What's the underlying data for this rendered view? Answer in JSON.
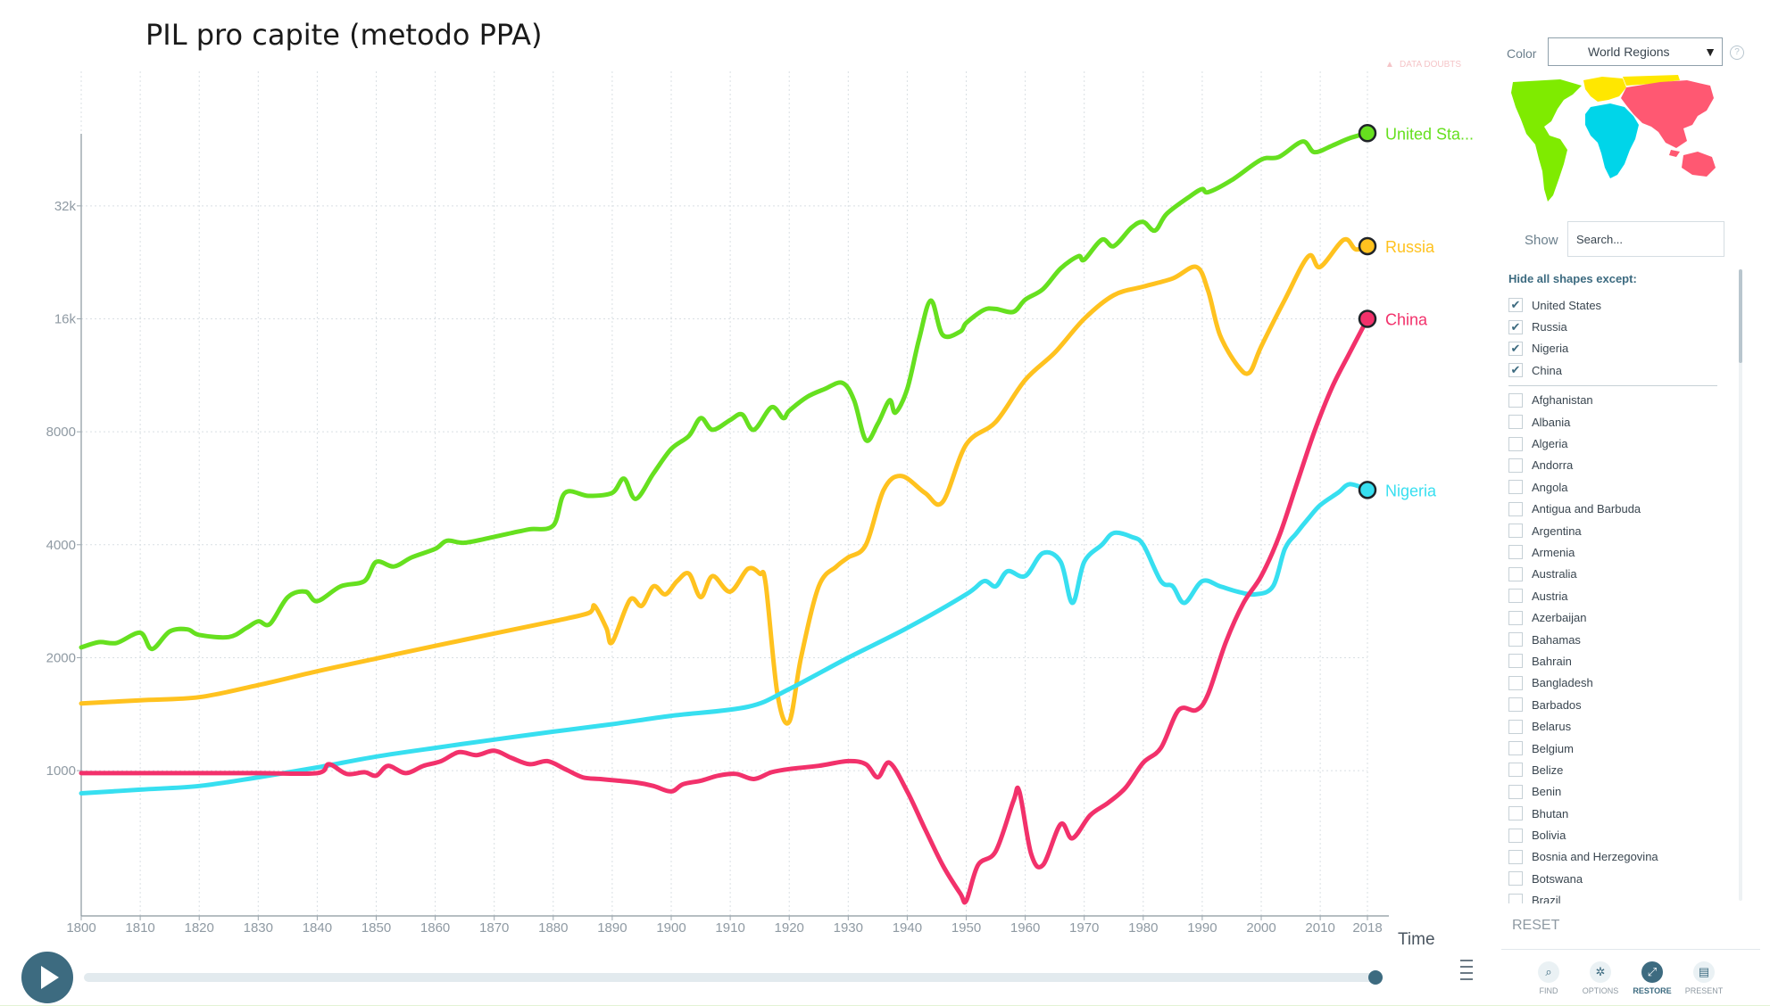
{
  "page_title": "PIL pro capite (metodo PPA)",
  "chart_data": {
    "type": "line",
    "title": "PIL pro capite (metodo PPA)",
    "xlabel": "Time",
    "ylabel": "",
    "x_range": [
      1800,
      2018
    ],
    "y_scale": "log",
    "y_range": [
      410,
      62000
    ],
    "x_ticks": [
      "1800",
      "1810",
      "1820",
      "1830",
      "1840",
      "1850",
      "1860",
      "1870",
      "1880",
      "1890",
      "1900",
      "1910",
      "1920",
      "1930",
      "1940",
      "1950",
      "1960",
      "1970",
      "1980",
      "1990",
      "2000",
      "2010",
      "2018"
    ],
    "y_ticks": [
      {
        "value": 1000,
        "label": "1000"
      },
      {
        "value": 2000,
        "label": "2000"
      },
      {
        "value": 4000,
        "label": "4000"
      },
      {
        "value": 8000,
        "label": "8000"
      },
      {
        "value": 16000,
        "label": "16k"
      },
      {
        "value": 32000,
        "label": "32k"
      }
    ],
    "grid": true,
    "notice": "DATA DOUBTS",
    "series": [
      {
        "name": "United States",
        "label": "United Sta...",
        "color": "#66e01f",
        "points": [
          [
            1800,
            2130
          ],
          [
            1803,
            2200
          ],
          [
            1806,
            2190
          ],
          [
            1810,
            2330
          ],
          [
            1812,
            2110
          ],
          [
            1815,
            2350
          ],
          [
            1818,
            2380
          ],
          [
            1820,
            2300
          ],
          [
            1825,
            2270
          ],
          [
            1828,
            2400
          ],
          [
            1830,
            2500
          ],
          [
            1832,
            2460
          ],
          [
            1835,
            2900
          ],
          [
            1838,
            3000
          ],
          [
            1840,
            2830
          ],
          [
            1844,
            3100
          ],
          [
            1848,
            3200
          ],
          [
            1850,
            3600
          ],
          [
            1853,
            3500
          ],
          [
            1856,
            3700
          ],
          [
            1860,
            3900
          ],
          [
            1862,
            4100
          ],
          [
            1865,
            4050
          ],
          [
            1870,
            4200
          ],
          [
            1873,
            4300
          ],
          [
            1876,
            4400
          ],
          [
            1880,
            4500
          ],
          [
            1882,
            5500
          ],
          [
            1886,
            5400
          ],
          [
            1890,
            5500
          ],
          [
            1892,
            6000
          ],
          [
            1894,
            5300
          ],
          [
            1897,
            6200
          ],
          [
            1900,
            7200
          ],
          [
            1903,
            7800
          ],
          [
            1905,
            8700
          ],
          [
            1907,
            8100
          ],
          [
            1910,
            8600
          ],
          [
            1912,
            8900
          ],
          [
            1914,
            8100
          ],
          [
            1917,
            9300
          ],
          [
            1919,
            8700
          ],
          [
            1920,
            9100
          ],
          [
            1923,
            9900
          ],
          [
            1926,
            10400
          ],
          [
            1929,
            10800
          ],
          [
            1931,
            9700
          ],
          [
            1933,
            7600
          ],
          [
            1935,
            8400
          ],
          [
            1937,
            9700
          ],
          [
            1938,
            9000
          ],
          [
            1940,
            10400
          ],
          [
            1942,
            14100
          ],
          [
            1944,
            17900
          ],
          [
            1946,
            14500
          ],
          [
            1949,
            14800
          ],
          [
            1950,
            15600
          ],
          [
            1953,
            16900
          ],
          [
            1955,
            17000
          ],
          [
            1958,
            16700
          ],
          [
            1960,
            18000
          ],
          [
            1963,
            19200
          ],
          [
            1966,
            21800
          ],
          [
            1969,
            23500
          ],
          [
            1970,
            23000
          ],
          [
            1973,
            26000
          ],
          [
            1975,
            25000
          ],
          [
            1978,
            28000
          ],
          [
            1980,
            29000
          ],
          [
            1982,
            27500
          ],
          [
            1984,
            30500
          ],
          [
            1988,
            34000
          ],
          [
            1990,
            35500
          ],
          [
            1991,
            34800
          ],
          [
            1995,
            37500
          ],
          [
            2000,
            42500
          ],
          [
            2003,
            43200
          ],
          [
            2007,
            47500
          ],
          [
            2009,
            44500
          ],
          [
            2012,
            46300
          ],
          [
            2015,
            48500
          ],
          [
            2018,
            50000
          ]
        ]
      },
      {
        "name": "Russia",
        "label": "Russia",
        "color": "#ffc21f",
        "points": [
          [
            1800,
            1510
          ],
          [
            1810,
            1540
          ],
          [
            1820,
            1570
          ],
          [
            1830,
            1690
          ],
          [
            1840,
            1840
          ],
          [
            1850,
            1990
          ],
          [
            1860,
            2150
          ],
          [
            1870,
            2320
          ],
          [
            1880,
            2500
          ],
          [
            1886,
            2630
          ],
          [
            1887,
            2750
          ],
          [
            1889,
            2400
          ],
          [
            1890,
            2200
          ],
          [
            1893,
            2850
          ],
          [
            1895,
            2750
          ],
          [
            1897,
            3100
          ],
          [
            1899,
            2950
          ],
          [
            1901,
            3200
          ],
          [
            1903,
            3350
          ],
          [
            1905,
            2900
          ],
          [
            1907,
            3300
          ],
          [
            1910,
            3000
          ],
          [
            1913,
            3450
          ],
          [
            1915,
            3350
          ],
          [
            1916,
            3150
          ],
          [
            1918,
            1600
          ],
          [
            1920,
            1350
          ],
          [
            1922,
            2000
          ],
          [
            1925,
            3100
          ],
          [
            1928,
            3500
          ],
          [
            1930,
            3700
          ],
          [
            1933,
            4000
          ],
          [
            1936,
            5600
          ],
          [
            1939,
            6100
          ],
          [
            1943,
            5500
          ],
          [
            1946,
            5200
          ],
          [
            1950,
            7400
          ],
          [
            1955,
            8500
          ],
          [
            1960,
            11000
          ],
          [
            1965,
            13000
          ],
          [
            1970,
            16000
          ],
          [
            1975,
            18500
          ],
          [
            1980,
            19500
          ],
          [
            1985,
            20500
          ],
          [
            1989,
            22000
          ],
          [
            1991,
            19000
          ],
          [
            1993,
            14500
          ],
          [
            1996,
            12000
          ],
          [
            1998,
            11500
          ],
          [
            2000,
            13500
          ],
          [
            2004,
            18000
          ],
          [
            2008,
            23500
          ],
          [
            2010,
            22000
          ],
          [
            2014,
            26000
          ],
          [
            2016,
            24500
          ],
          [
            2018,
            25000
          ]
        ]
      },
      {
        "name": "Nigeria",
        "label": "Nigeria",
        "color": "#37dff0",
        "points": [
          [
            1800,
            870
          ],
          [
            1810,
            890
          ],
          [
            1820,
            910
          ],
          [
            1830,
            960
          ],
          [
            1840,
            1020
          ],
          [
            1850,
            1090
          ],
          [
            1860,
            1150
          ],
          [
            1870,
            1210
          ],
          [
            1880,
            1270
          ],
          [
            1890,
            1330
          ],
          [
            1900,
            1400
          ],
          [
            1913,
            1480
          ],
          [
            1920,
            1650
          ],
          [
            1930,
            2000
          ],
          [
            1940,
            2400
          ],
          [
            1950,
            2950
          ],
          [
            1953,
            3200
          ],
          [
            1955,
            3100
          ],
          [
            1957,
            3400
          ],
          [
            1960,
            3300
          ],
          [
            1963,
            3800
          ],
          [
            1966,
            3600
          ],
          [
            1968,
            2800
          ],
          [
            1970,
            3600
          ],
          [
            1973,
            4000
          ],
          [
            1975,
            4300
          ],
          [
            1978,
            4200
          ],
          [
            1980,
            4000
          ],
          [
            1983,
            3200
          ],
          [
            1985,
            3100
          ],
          [
            1987,
            2800
          ],
          [
            1990,
            3200
          ],
          [
            1993,
            3100
          ],
          [
            1996,
            3000
          ],
          [
            1999,
            2950
          ],
          [
            2002,
            3100
          ],
          [
            2004,
            3900
          ],
          [
            2006,
            4300
          ],
          [
            2008,
            4700
          ],
          [
            2010,
            5100
          ],
          [
            2013,
            5500
          ],
          [
            2015,
            5800
          ],
          [
            2018,
            5600
          ]
        ]
      },
      {
        "name": "China",
        "label": "China",
        "color": "#f2316b",
        "points": [
          [
            1800,
            985
          ],
          [
            1810,
            985
          ],
          [
            1820,
            985
          ],
          [
            1830,
            985
          ],
          [
            1840,
            985
          ],
          [
            1842,
            1040
          ],
          [
            1845,
            980
          ],
          [
            1848,
            990
          ],
          [
            1850,
            970
          ],
          [
            1852,
            1030
          ],
          [
            1855,
            985
          ],
          [
            1858,
            1030
          ],
          [
            1861,
            1060
          ],
          [
            1864,
            1120
          ],
          [
            1867,
            1100
          ],
          [
            1870,
            1130
          ],
          [
            1873,
            1080
          ],
          [
            1876,
            1040
          ],
          [
            1879,
            1060
          ],
          [
            1882,
            1010
          ],
          [
            1885,
            960
          ],
          [
            1888,
            950
          ],
          [
            1891,
            940
          ],
          [
            1894,
            930
          ],
          [
            1897,
            910
          ],
          [
            1900,
            880
          ],
          [
            1902,
            920
          ],
          [
            1905,
            940
          ],
          [
            1908,
            970
          ],
          [
            1911,
            980
          ],
          [
            1914,
            950
          ],
          [
            1917,
            990
          ],
          [
            1920,
            1010
          ],
          [
            1925,
            1030
          ],
          [
            1930,
            1060
          ],
          [
            1933,
            1040
          ],
          [
            1935,
            960
          ],
          [
            1937,
            1050
          ],
          [
            1940,
            880
          ],
          [
            1943,
            700
          ],
          [
            1946,
            560
          ],
          [
            1949,
            470
          ],
          [
            1950,
            450
          ],
          [
            1952,
            560
          ],
          [
            1955,
            610
          ],
          [
            1958,
            830
          ],
          [
            1959,
            880
          ],
          [
            1961,
            600
          ],
          [
            1963,
            560
          ],
          [
            1966,
            720
          ],
          [
            1968,
            660
          ],
          [
            1971,
            760
          ],
          [
            1974,
            820
          ],
          [
            1977,
            900
          ],
          [
            1980,
            1050
          ],
          [
            1983,
            1150
          ],
          [
            1986,
            1450
          ],
          [
            1989,
            1450
          ],
          [
            1991,
            1600
          ],
          [
            1994,
            2200
          ],
          [
            1997,
            2800
          ],
          [
            2000,
            3300
          ],
          [
            2003,
            4200
          ],
          [
            2006,
            5800
          ],
          [
            2009,
            8000
          ],
          [
            2012,
            10500
          ],
          [
            2015,
            13000
          ],
          [
            2018,
            16000
          ]
        ]
      }
    ]
  },
  "controls": {
    "play_icon": "play-icon",
    "speed_icon": "speed-icon"
  },
  "panel": {
    "color_label": "Color",
    "color_value": "World Regions",
    "help_icon": "?",
    "map_regions": [
      {
        "name": "Americas",
        "color": "#7feb00"
      },
      {
        "name": "Europe",
        "color": "#ffe700"
      },
      {
        "name": "Africa",
        "color": "#00d5e9"
      },
      {
        "name": "Asia",
        "color": "#ff5872"
      }
    ],
    "show_label": "Show",
    "search_placeholder": "Search...",
    "hide_label": "Hide all shapes except:",
    "selected_items": [
      {
        "label": "United States",
        "checked": true
      },
      {
        "label": "Russia",
        "checked": true
      },
      {
        "label": "Nigeria",
        "checked": true
      },
      {
        "label": "China",
        "checked": true
      }
    ],
    "items": [
      "Afghanistan",
      "Albania",
      "Algeria",
      "Andorra",
      "Angola",
      "Antigua and Barbuda",
      "Argentina",
      "Armenia",
      "Australia",
      "Austria",
      "Azerbaijan",
      "Bahamas",
      "Bahrain",
      "Bangladesh",
      "Barbados",
      "Belarus",
      "Belgium",
      "Belize",
      "Benin",
      "Bhutan",
      "Bolivia",
      "Bosnia and Herzegovina",
      "Botswana",
      "Brazil"
    ],
    "reset_label": "RESET",
    "tools": [
      {
        "label": "FIND",
        "icon": "search-icon",
        "glyph": "⌕",
        "active": false
      },
      {
        "label": "OPTIONS",
        "icon": "gear-icon",
        "glyph": "✲",
        "active": false
      },
      {
        "label": "RESTORE",
        "icon": "restore-icon",
        "glyph": "⤢",
        "active": true
      },
      {
        "label": "PRESENT",
        "icon": "present-icon",
        "glyph": "▤",
        "active": false
      }
    ]
  }
}
